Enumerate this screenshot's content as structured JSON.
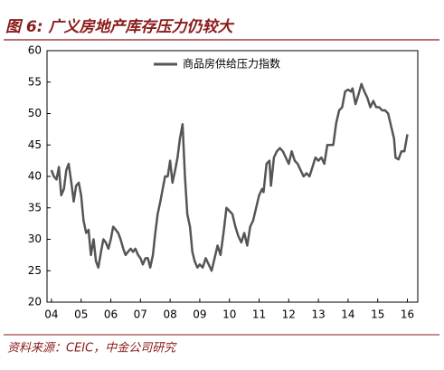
{
  "chart_data": {
    "type": "line",
    "title": "图 6: 广义房地产库存压力仍较大",
    "source": "资料来源：CEIC，中金公司研究",
    "series": [
      {
        "name": "商品房供给压力指数",
        "color": "#555555",
        "x": [
          2004.0,
          2004.08,
          2004.17,
          2004.25,
          2004.33,
          2004.42,
          2004.5,
          2004.58,
          2004.67,
          2004.75,
          2004.83,
          2004.92,
          2005.0,
          2005.08,
          2005.17,
          2005.25,
          2005.33,
          2005.42,
          2005.5,
          2005.58,
          2005.67,
          2005.75,
          2005.83,
          2005.92,
          2006.0,
          2006.08,
          2006.17,
          2006.25,
          2006.33,
          2006.42,
          2006.5,
          2006.58,
          2006.67,
          2006.75,
          2006.83,
          2006.92,
          2007.0,
          2007.08,
          2007.17,
          2007.25,
          2007.33,
          2007.42,
          2007.5,
          2007.58,
          2007.67,
          2007.75,
          2007.83,
          2007.92,
          2008.0,
          2008.08,
          2008.17,
          2008.25,
          2008.33,
          2008.42,
          2008.5,
          2008.58,
          2008.67,
          2008.75,
          2008.83,
          2008.92,
          2009.0,
          2009.1,
          2009.2,
          2009.3,
          2009.4,
          2009.5,
          2009.6,
          2009.7,
          2009.8,
          2009.9,
          2010.0,
          2010.1,
          2010.2,
          2010.3,
          2010.4,
          2010.5,
          2010.6,
          2010.7,
          2010.8,
          2010.9,
          2011.0,
          2011.1,
          2011.15,
          2011.25,
          2011.35,
          2011.4,
          2011.5,
          2011.6,
          2011.7,
          2011.8,
          2011.9,
          2012.0,
          2012.1,
          2012.2,
          2012.3,
          2012.4,
          2012.5,
          2012.6,
          2012.7,
          2012.8,
          2012.9,
          2013.0,
          2013.1,
          2013.2,
          2013.3,
          2013.4,
          2013.5,
          2013.6,
          2013.7,
          2013.8,
          2013.9,
          2014.0,
          2014.1,
          2014.15,
          2014.25,
          2014.35,
          2014.45,
          2014.55,
          2014.65,
          2014.75,
          2014.85,
          2014.95,
          2015.05,
          2015.15,
          2015.25,
          2015.35,
          2015.45,
          2015.55,
          2015.6,
          2015.7,
          2015.8,
          2015.9,
          2016.0
        ],
        "values": [
          41,
          40,
          39.5,
          41.5,
          37,
          38,
          41,
          42,
          39,
          36,
          38.5,
          39,
          37,
          33,
          31,
          31.5,
          27.5,
          30,
          26.5,
          25.5,
          28,
          30,
          29.5,
          28.5,
          30,
          32,
          31.5,
          31,
          30,
          28.5,
          27.5,
          28,
          28.5,
          28,
          28.5,
          27.5,
          27,
          26,
          27,
          27,
          25.5,
          27.5,
          31,
          34,
          36,
          38,
          40,
          40,
          42.5,
          39,
          41,
          43,
          46,
          48.3,
          40,
          34,
          32,
          28,
          26.5,
          25.5,
          26,
          25.5,
          27,
          26,
          25,
          27,
          29,
          27.5,
          31,
          35,
          34.5,
          34,
          32,
          30.5,
          29.5,
          31,
          29,
          32,
          33,
          35,
          37,
          38,
          37.5,
          42,
          42.5,
          38.5,
          43,
          44,
          44.5,
          44,
          43,
          42,
          44,
          42.5,
          42,
          41,
          40,
          40.5,
          40,
          41.5,
          43,
          42.5,
          43,
          42,
          45,
          45,
          45,
          48.5,
          50.5,
          51,
          53.5,
          53.8,
          53.5,
          54,
          51.5,
          53,
          54.7,
          53.5,
          52.5,
          51,
          52,
          51,
          51,
          50.5,
          50.5,
          50,
          48,
          46,
          43,
          42.7,
          44,
          44,
          46.7
        ]
      }
    ],
    "xlim": [
      2003.85,
      2016.35
    ],
    "xticks": [
      {
        "value": 2004,
        "label": "04"
      },
      {
        "value": 2005,
        "label": "05"
      },
      {
        "value": 2006,
        "label": "06"
      },
      {
        "value": 2007,
        "label": "07"
      },
      {
        "value": 2008,
        "label": "08"
      },
      {
        "value": 2009,
        "label": "09"
      },
      {
        "value": 2010,
        "label": "10"
      },
      {
        "value": 2011,
        "label": "11"
      },
      {
        "value": 2012,
        "label": "12"
      },
      {
        "value": 2013,
        "label": "13"
      },
      {
        "value": 2014,
        "label": "14"
      },
      {
        "value": 2015,
        "label": "15"
      },
      {
        "value": 2016,
        "label": "16"
      }
    ],
    "ylim": [
      20,
      60
    ],
    "yticks": [
      20,
      25,
      30,
      35,
      40,
      45,
      50,
      55,
      60
    ]
  }
}
